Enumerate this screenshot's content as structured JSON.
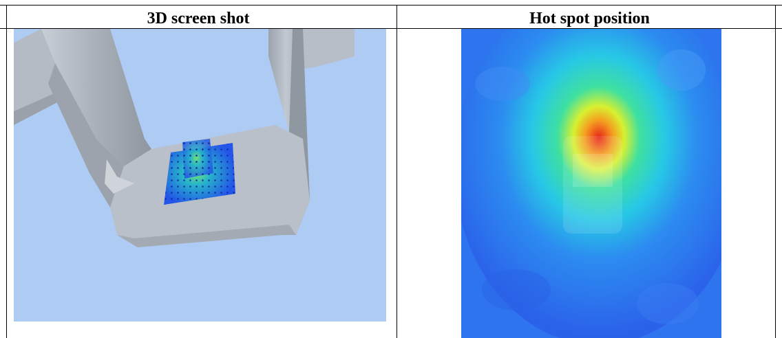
{
  "table": {
    "headers": [
      {
        "label": "3D screen shot"
      },
      {
        "label": "Hot spot position"
      }
    ]
  },
  "panels": {
    "left": {
      "icon": "3d-model-render"
    },
    "right": {
      "icon": "heatmap-render"
    }
  },
  "colors": {
    "sky": "#aecbf3",
    "model": "#b3bac3",
    "grid": "#2355e8",
    "heat_low": "#2b6cf0",
    "heat_mid": "#3fe0a0",
    "heat_high": "#e8241a"
  }
}
